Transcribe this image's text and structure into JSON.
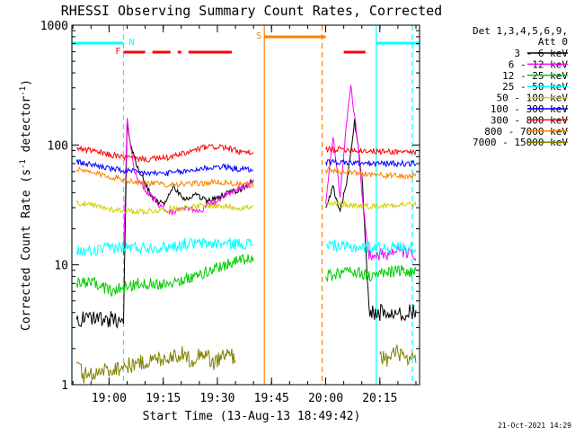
{
  "chart_data": {
    "type": "line",
    "title": "RHESSI Observing Summary Count Rates, Corrected",
    "xlabel": "Start Time (13-Aug-13 18:49:42)",
    "ylabel": "Corrected Count Rate (s⁻¹ detector⁻¹)",
    "ylabel_parts": [
      "Corrected Count Rate (s",
      "-1",
      " detector",
      "-1",
      ")"
    ],
    "yscale": "log",
    "ylim": [
      1,
      1000
    ],
    "xlim": [
      "18:49:42",
      "20:26:00"
    ],
    "x_ticks": [
      "19:00",
      "19:15",
      "19:30",
      "19:45",
      "20:00",
      "20:15"
    ],
    "y_ticks": [
      "1",
      "10",
      "100",
      "1000"
    ],
    "detectors": [
      "Det 1,3,4,5,6,9,",
      "Att 0"
    ],
    "timestamp": "21-Oct-2021 14:29",
    "series": [
      {
        "name": "3 - 6 keV",
        "color": "#000000",
        "x": [
          "18:51",
          "18:55",
          "19:00",
          "19:04",
          "19:05",
          "19:06",
          "19:08",
          "19:10",
          "19:12",
          "19:15",
          "19:18",
          "19:21",
          "19:24",
          "19:27",
          "19:30",
          "19:33",
          "19:36",
          "19:39",
          "19:40",
          "20:00",
          "20:02",
          "20:04",
          "20:06",
          "20:08",
          "20:10",
          "20:12",
          "20:14",
          "20:18",
          "20:22",
          "20:25"
        ],
        "y": [
          3.5,
          3.5,
          3.5,
          3.5,
          150,
          100,
          65,
          48,
          36,
          32,
          45,
          35,
          38,
          34,
          36,
          40,
          42,
          48,
          50,
          30,
          45,
          28,
          52,
          160,
          55,
          4,
          4,
          4,
          4,
          4
        ]
      },
      {
        "name": "6 - 12 keV",
        "color": "#ff00ff",
        "x": [
          "19:04",
          "19:05",
          "19:07",
          "19:10",
          "19:13",
          "19:16",
          "19:19",
          "19:22",
          "19:25",
          "19:28",
          "19:31",
          "19:34",
          "19:37",
          "19:40",
          "20:00",
          "20:02",
          "20:04",
          "20:06",
          "20:07",
          "20:09",
          "20:10",
          "20:12",
          "20:15",
          "20:20",
          "20:25"
        ],
        "y": [
          12,
          170,
          60,
          42,
          34,
          27,
          28,
          30,
          28,
          32,
          36,
          40,
          45,
          48,
          32,
          120,
          38,
          180,
          300,
          100,
          40,
          12,
          12,
          13,
          12
        ]
      },
      {
        "name": "12 - 25 keV",
        "color": "#00cc00",
        "x": [
          "18:51",
          "18:56",
          "19:01",
          "19:04",
          "19:08",
          "19:12",
          "19:16",
          "19:20",
          "19:24",
          "19:28",
          "19:32",
          "19:36",
          "19:40",
          "20:00",
          "20:04",
          "20:08",
          "20:12",
          "20:16",
          "20:20",
          "20:25"
        ],
        "y": [
          7,
          7,
          6,
          6.5,
          7,
          7,
          7,
          7.5,
          8,
          9,
          10,
          11,
          11,
          8,
          8.5,
          9,
          8,
          8.5,
          9,
          8.5
        ]
      },
      {
        "name": "25 - 50 keV",
        "color": "#00ffff",
        "x": [
          "18:51",
          "18:56",
          "19:01",
          "19:06",
          "19:11",
          "19:16",
          "19:21",
          "19:26",
          "19:31",
          "19:36",
          "19:40",
          "20:00",
          "20:05",
          "20:10",
          "20:15",
          "20:20",
          "20:25"
        ],
        "y": [
          13,
          13,
          14,
          14,
          14,
          14,
          15,
          15,
          15,
          15,
          15,
          15,
          14,
          14,
          14,
          14,
          14
        ]
      },
      {
        "name": "50 - 100 keV",
        "color": "#d0d000",
        "x": [
          "18:51",
          "18:56",
          "19:01",
          "19:06",
          "19:11",
          "19:16",
          "19:21",
          "19:26",
          "19:31",
          "19:36",
          "19:40",
          "20:00",
          "20:05",
          "20:10",
          "20:15",
          "20:20",
          "20:25"
        ],
        "y": [
          33,
          31,
          29,
          28,
          28,
          29,
          30,
          31,
          31,
          30,
          30,
          32,
          32,
          31,
          31,
          32,
          32
        ]
      },
      {
        "name": "100 - 300 keV",
        "color": "#0000ff",
        "x": [
          "18:51",
          "18:56",
          "19:01",
          "19:06",
          "19:11",
          "19:16",
          "19:21",
          "19:26",
          "19:31",
          "19:36",
          "19:40",
          "20:00",
          "20:05",
          "20:10",
          "20:15",
          "20:20",
          "20:25"
        ],
        "y": [
          72,
          68,
          63,
          60,
          58,
          58,
          60,
          64,
          66,
          63,
          62,
          72,
          72,
          70,
          70,
          70,
          70
        ]
      },
      {
        "name": "300 - 800 keV",
        "color": "#ff0000",
        "x": [
          "18:51",
          "18:56",
          "19:01",
          "19:06",
          "19:11",
          "19:16",
          "19:21",
          "19:26",
          "19:31",
          "19:36",
          "19:40",
          "20:00",
          "20:05",
          "20:10",
          "20:15",
          "20:20",
          "20:25"
        ],
        "y": [
          95,
          88,
          82,
          78,
          76,
          78,
          85,
          95,
          97,
          88,
          84,
          92,
          92,
          90,
          88,
          88,
          88
        ]
      },
      {
        "name": "800 - 7000 keV",
        "color": "#ff8000",
        "x": [
          "18:51",
          "18:56",
          "19:01",
          "19:06",
          "19:11",
          "19:16",
          "19:21",
          "19:26",
          "19:31",
          "19:36",
          "19:40",
          "20:00",
          "20:05",
          "20:10",
          "20:15",
          "20:20",
          "20:25"
        ],
        "y": [
          62,
          58,
          54,
          50,
          48,
          47,
          47,
          48,
          49,
          47,
          46,
          62,
          60,
          58,
          56,
          55,
          55
        ]
      },
      {
        "name": "7000 - 15000 keV",
        "color": "#808000",
        "x": [
          "18:51",
          "18:53",
          "19:20",
          "19:23",
          "19:26",
          "19:29",
          "19:32",
          "19:35",
          "20:15",
          "20:17",
          "20:20",
          "20:23",
          "20:25"
        ],
        "y": [
          1.5,
          1.2,
          1.8,
          1.6,
          1.9,
          1.5,
          1.8,
          1.7,
          1.8,
          1.6,
          1.9,
          1.5,
          1.7
        ]
      }
    ],
    "flags": [
      {
        "label": "N",
        "color": "#00ffff",
        "segments": [
          [
            "18:49:42",
            "19:04"
          ],
          [
            "20:14",
            "20:26"
          ]
        ]
      },
      {
        "label": "F",
        "color": "#ff0000",
        "segments": [
          [
            "19:04",
            "19:10"
          ],
          [
            "19:12",
            "19:17"
          ],
          [
            "19:19",
            "19:20"
          ],
          [
            "19:22",
            "19:34"
          ],
          [
            "20:05",
            "20:11"
          ]
        ]
      },
      {
        "label": "S",
        "color": "#ff8000",
        "segments": [
          [
            "19:43",
            "20:00"
          ]
        ]
      }
    ],
    "vertical_markers": [
      {
        "time": "18:49:42",
        "color": "#00ffff",
        "style": "solid"
      },
      {
        "time": "19:04",
        "color": "#00ffff",
        "style": "dashed"
      },
      {
        "time": "19:43",
        "color": "#ff8000",
        "style": "solid"
      },
      {
        "time": "19:59",
        "color": "#ff8000",
        "style": "dashed"
      },
      {
        "time": "20:14",
        "color": "#00ffff",
        "style": "solid"
      },
      {
        "time": "20:24",
        "color": "#00ffff",
        "style": "dashed"
      }
    ],
    "data_gaps": [
      [
        "19:41",
        "19:59"
      ]
    ]
  }
}
